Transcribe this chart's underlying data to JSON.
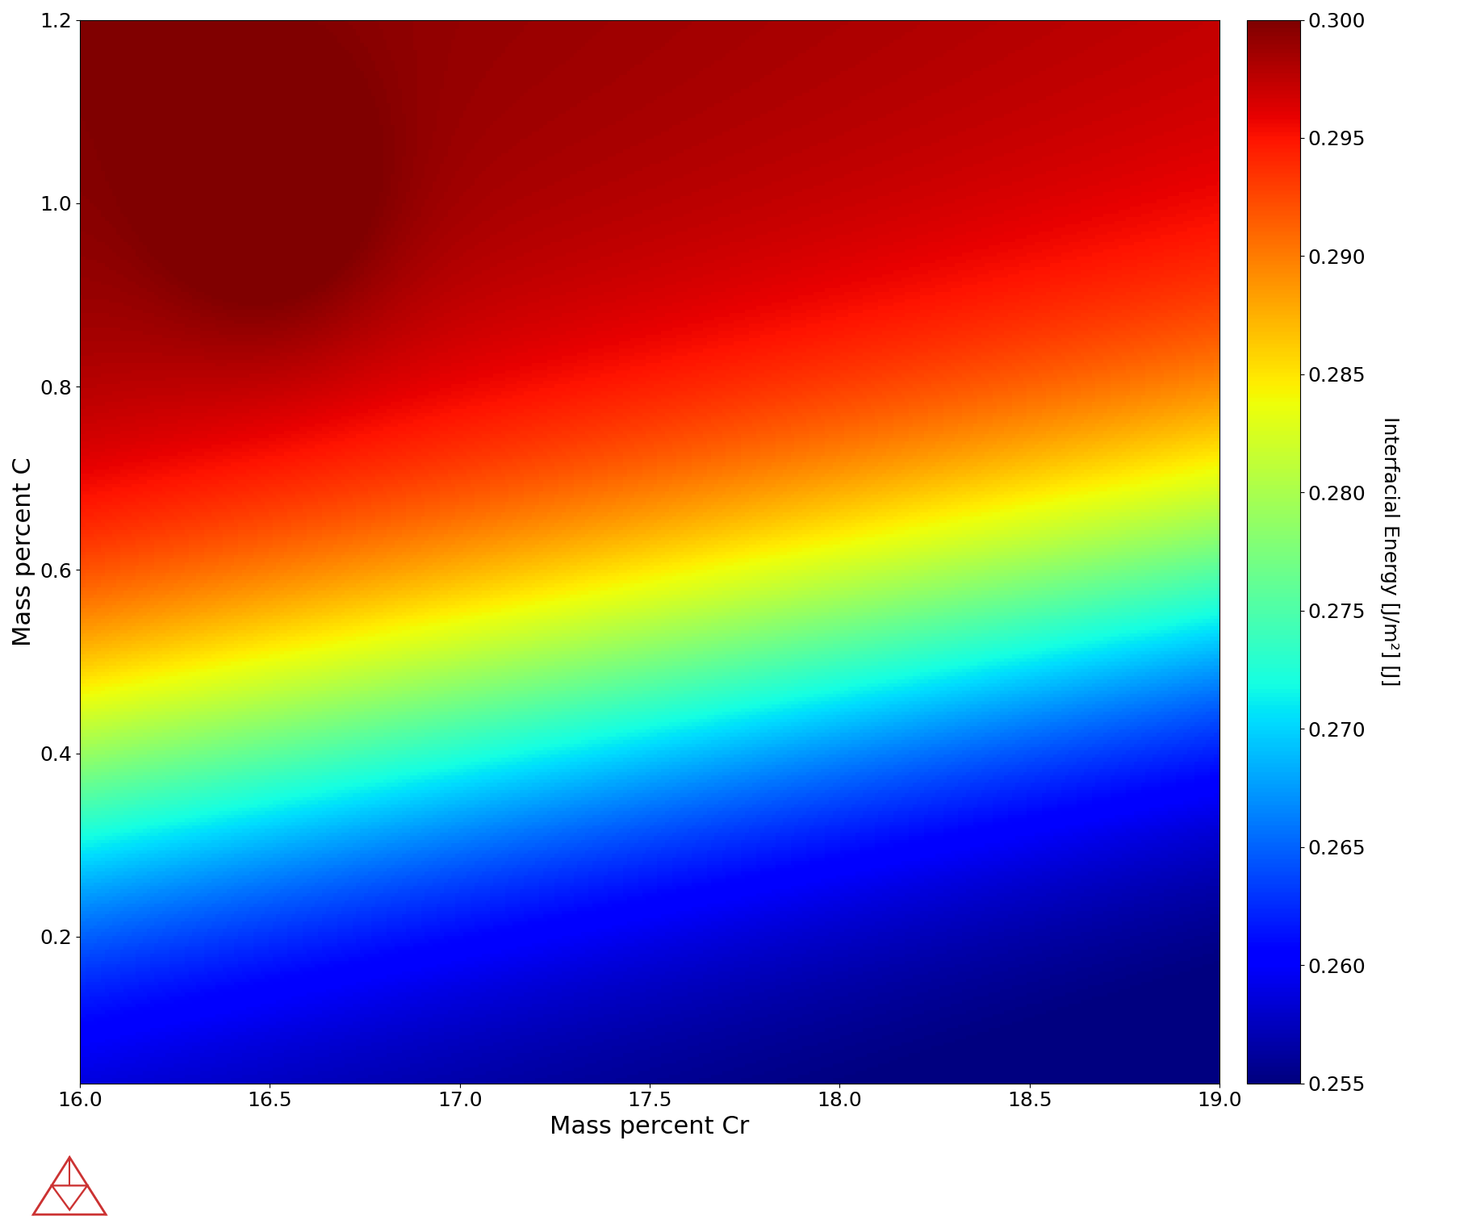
{
  "xlabel": "Mass percent Cr",
  "ylabel": "Mass percent C",
  "colorbar_label": "Interfacial Energy [J/m²] [J]",
  "xlim": [
    16.0,
    19.0
  ],
  "ylim": [
    0.04,
    1.2
  ],
  "yticks": [
    0.2,
    0.4,
    0.6,
    0.8,
    1.0,
    1.2
  ],
  "xticks": [
    16.0,
    16.5,
    17.0,
    17.5,
    18.0,
    18.5,
    19.0
  ],
  "cbar_ticks": [
    0.255,
    0.26,
    0.265,
    0.27,
    0.275,
    0.28,
    0.285,
    0.29,
    0.295,
    0.3
  ],
  "vmin": 0.255,
  "vmax": 0.3,
  "nx": 300,
  "ny": 300,
  "cr_min": 16.0,
  "cr_max": 19.0,
  "c_min": 0.04,
  "c_max": 1.2,
  "background_color": "white",
  "axis_label_fontsize": 22,
  "tick_fontsize": 18,
  "colorbar_label_fontsize": 18,
  "colorbar_tick_fontsize": 18,
  "logo_color": "#cc3333"
}
